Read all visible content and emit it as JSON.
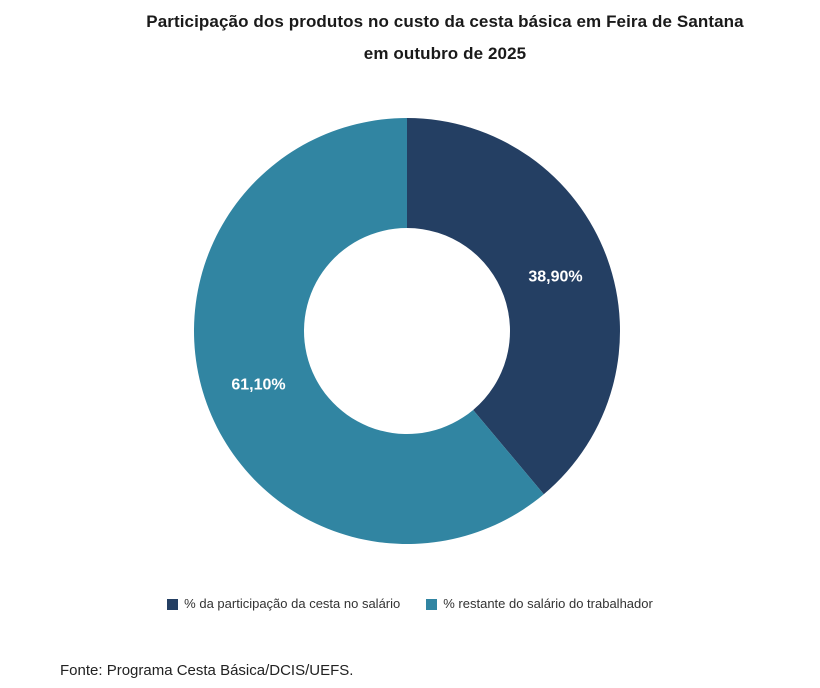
{
  "title": {
    "line1": "Participação dos produtos no custo da cesta básica em Feira de Santana",
    "line2": "em outubro de 2025"
  },
  "footer": {
    "source": "Fonte: Programa Cesta Básica/DCIS/UEFS."
  },
  "chart_data": {
    "type": "pie",
    "subtype": "donut",
    "title": "Participação dos produtos no custo da cesta básica em Feira de Santana em outubro de 2025",
    "direction": "clockwise",
    "start_angle_deg": 0,
    "label_color": "#FFFFFF",
    "legend_position": "bottom",
    "slices": [
      {
        "legend": "% da participação da cesta no salário",
        "value": 38.9,
        "label": "38,90%",
        "color": "#243F63"
      },
      {
        "legend": "% restante do salário do trabalhador",
        "value": 61.1,
        "label": "61,10%",
        "color": "#3185A2"
      }
    ]
  }
}
